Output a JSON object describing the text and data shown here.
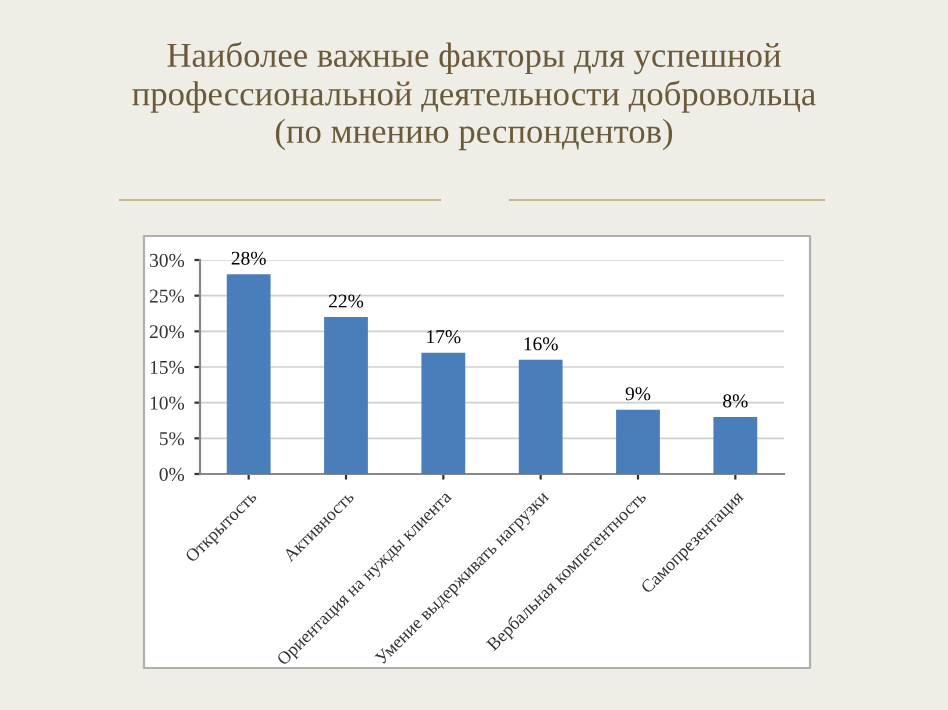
{
  "chart_data": {
    "type": "bar",
    "title": "Наиболее важные факторы для успешной\nпрофессиональной деятельности добровольца\n(по мнению респондентов)",
    "categories": [
      "Открытость",
      "Активность",
      "Ориентация на нужды клиента",
      "Умение выдерживать нагрузки",
      "Вербальная компетентность",
      "Самопрезентация"
    ],
    "values": [
      28,
      22,
      17,
      16,
      9,
      8
    ],
    "color": "#4a7ebb",
    "value_labels": [
      "28%",
      "22%",
      "17%",
      "16%",
      "9%",
      "8%"
    ],
    "ylim": [
      0,
      30
    ],
    "yticks": [
      {
        "value": 0,
        "label": "0%"
      },
      {
        "value": 5,
        "label": "5%"
      },
      {
        "value": 10,
        "label": "10%"
      },
      {
        "value": 15,
        "label": "15%"
      },
      {
        "value": 20,
        "label": "20%"
      },
      {
        "value": 25,
        "label": "25%"
      },
      {
        "value": 30,
        "label": "30%"
      }
    ],
    "grid": "y"
  }
}
